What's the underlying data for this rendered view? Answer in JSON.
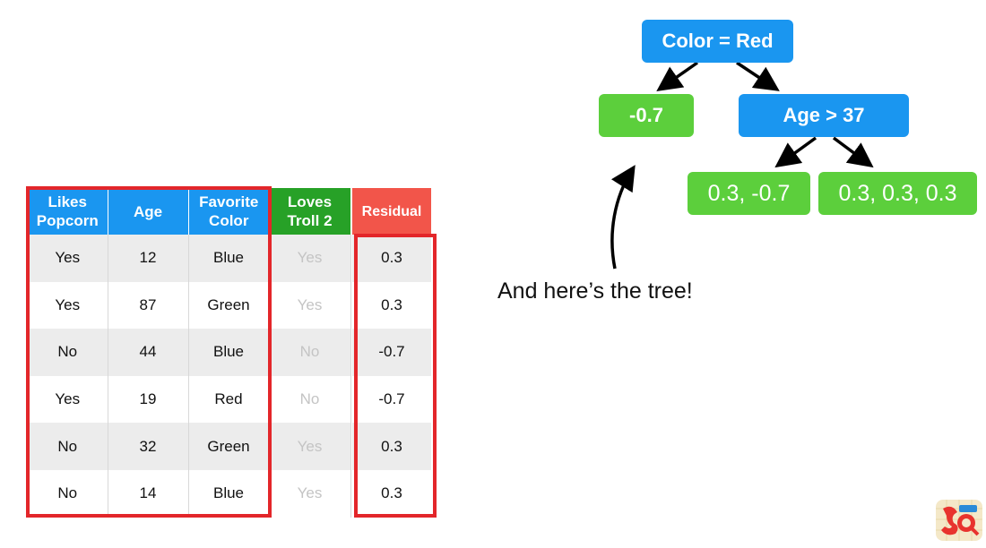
{
  "table": {
    "headers": [
      {
        "lines": [
          "Likes",
          "Popcorn"
        ]
      },
      {
        "lines": [
          "Age"
        ]
      },
      {
        "lines": [
          "Favorite",
          "Color"
        ]
      },
      {
        "lines": [
          "Loves",
          "Troll 2"
        ]
      },
      {
        "lines": [
          "Residual"
        ]
      }
    ],
    "rows": [
      [
        "Yes",
        "12",
        "Blue",
        "Yes",
        "0.3"
      ],
      [
        "Yes",
        "87",
        "Green",
        "Yes",
        "0.3"
      ],
      [
        "No",
        "44",
        "Blue",
        "No",
        "-0.7"
      ],
      [
        "Yes",
        "19",
        "Red",
        "No",
        "-0.7"
      ],
      [
        "No",
        "32",
        "Green",
        "Yes",
        "0.3"
      ],
      [
        "No",
        "14",
        "Blue",
        "Yes",
        "0.3"
      ]
    ]
  },
  "tree": {
    "root": "Color = Red",
    "left_leaf": "-0.7",
    "right_node": "Age > 37",
    "right_left_leaf": "0.3, -0.7",
    "right_right_leaf": "0.3, 0.3, 0.3"
  },
  "caption": "And here’s the tree!",
  "colors": {
    "node_blue": "#1a96f0",
    "leaf_green": "#5ccf3c",
    "header_green": "#27a127",
    "header_red": "#f2554a",
    "highlight_red": "#e3262a"
  },
  "logo_icon": "statquest-logo-icon"
}
